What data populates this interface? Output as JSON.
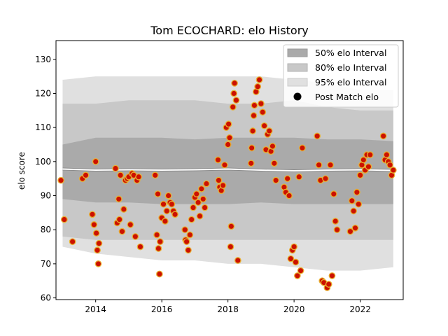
{
  "chart_data": {
    "type": "scatter",
    "title": "Tom ECOCHARD: elo History",
    "xlabel": "",
    "ylabel": "elo score",
    "xlim": [
      2012.8,
      2023.3
    ],
    "ylim": [
      59.5,
      135.5
    ],
    "x_ticks": [
      2014,
      2016,
      2018,
      2020,
      2022
    ],
    "y_ticks": [
      60,
      70,
      80,
      90,
      100,
      110,
      120,
      130
    ],
    "grid": false,
    "legend_position": "top-right",
    "colors": {
      "band_50": "#aaaaaa",
      "band_80": "#c8c8c8",
      "band_95": "#e0e0e0",
      "median_line": "#ffffff",
      "marker_face": "#cc1100",
      "marker_edge": "#e8b030"
    },
    "legend": [
      {
        "label": "50% elo Interval",
        "kind": "band50"
      },
      {
        "label": "80% elo Interval",
        "kind": "band80"
      },
      {
        "label": "95% elo Interval",
        "kind": "band95"
      },
      {
        "label": "Post Match elo",
        "kind": "marker"
      }
    ],
    "intervals": {
      "x": [
        2013.0,
        2014.0,
        2015.0,
        2016.0,
        2017.0,
        2018.0,
        2019.0,
        2020.0,
        2021.0,
        2022.0,
        2023.0
      ],
      "median": [
        97.8,
        97.5,
        97.6,
        97.5,
        97.6,
        97.8,
        97.5,
        97.3,
        97.5,
        97.6,
        97.4
      ],
      "p50_low": [
        89,
        88,
        88,
        87.5,
        87.5,
        87.5,
        88,
        87.5,
        87.5,
        87.5,
        87.5
      ],
      "p50_high": [
        105,
        107,
        107,
        107,
        106.5,
        107,
        107,
        107,
        106.5,
        106.5,
        106
      ],
      "p80_low": [
        78,
        77,
        77,
        77,
        77,
        77,
        77,
        77,
        77,
        77,
        77
      ],
      "p80_high": [
        117,
        117,
        118,
        118,
        118,
        117,
        117,
        118,
        116,
        115,
        115
      ],
      "p95_low": [
        75,
        73,
        72,
        71,
        71,
        70,
        70,
        69,
        68,
        68,
        69
      ],
      "p95_high": [
        124,
        125,
        125,
        125,
        125,
        125,
        125,
        124,
        123,
        121,
        121
      ]
    },
    "series": [
      {
        "name": "Post Match elo",
        "x": [
          2012.95,
          2013.05,
          2013.3,
          2013.6,
          2013.7,
          2013.9,
          2013.95,
          2014.0,
          2014.02,
          2014.05,
          2014.08,
          2014.1,
          2014.6,
          2014.65,
          2014.7,
          2014.72,
          2014.75,
          2014.8,
          2014.85,
          2014.9,
          2014.95,
          2015.0,
          2015.05,
          2015.1,
          2015.15,
          2015.2,
          2015.25,
          2015.3,
          2015.35,
          2015.8,
          2015.85,
          2015.88,
          2015.9,
          2015.93,
          2015.95,
          2016.0,
          2016.05,
          2016.1,
          2016.15,
          2016.2,
          2016.25,
          2016.3,
          2016.35,
          2016.4,
          2016.7,
          2016.72,
          2016.75,
          2016.8,
          2016.85,
          2016.9,
          2016.95,
          2017.0,
          2017.05,
          2017.1,
          2017.15,
          2017.2,
          2017.25,
          2017.3,
          2017.35,
          2017.7,
          2017.72,
          2017.75,
          2017.8,
          2017.85,
          2017.9,
          2017.95,
          2018.0,
          2018.02,
          2018.05,
          2018.08,
          2018.1,
          2018.15,
          2018.18,
          2018.2,
          2018.25,
          2018.3,
          2018.7,
          2018.72,
          2018.75,
          2018.78,
          2018.8,
          2018.85,
          2018.9,
          2018.95,
          2019.0,
          2019.05,
          2019.1,
          2019.15,
          2019.2,
          2019.25,
          2019.3,
          2019.35,
          2019.4,
          2019.45,
          2019.7,
          2019.75,
          2019.8,
          2019.85,
          2019.9,
          2019.95,
          2020.0,
          2020.05,
          2020.1,
          2020.15,
          2020.2,
          2020.25,
          2020.7,
          2020.75,
          2020.8,
          2020.85,
          2020.9,
          2020.95,
          2021.0,
          2021.05,
          2021.1,
          2021.15,
          2021.2,
          2021.25,
          2021.3,
          2021.7,
          2021.75,
          2021.8,
          2021.85,
          2021.9,
          2021.95,
          2022.0,
          2022.05,
          2022.1,
          2022.15,
          2022.2,
          2022.25,
          2022.3,
          2022.7,
          2022.75,
          2022.8,
          2022.85,
          2022.9,
          2022.95,
          2023.0
        ],
        "y": [
          94.5,
          83,
          76.5,
          95,
          96,
          84.5,
          81.5,
          100,
          79,
          74,
          70,
          76,
          98,
          82,
          89,
          83,
          96,
          79.5,
          86,
          94.5,
          95,
          95.5,
          81.5,
          96.5,
          96,
          78,
          94.5,
          95.5,
          75,
          96,
          78.5,
          90.5,
          74.5,
          67,
          76.5,
          83.5,
          87.5,
          82.5,
          85.5,
          90,
          88,
          87.5,
          85.5,
          84.5,
          80,
          77,
          76.5,
          74,
          78.5,
          83,
          86.5,
          89.5,
          90.5,
          88,
          84,
          92,
          89,
          86.5,
          93.5,
          100.5,
          94.5,
          92.5,
          91.5,
          93,
          99,
          110,
          105,
          111,
          107,
          75,
          81,
          116,
          120,
          123,
          118,
          71,
          99.5,
          104,
          109,
          113.5,
          116.5,
          120.5,
          122,
          124,
          117,
          114.5,
          110.5,
          103.5,
          108,
          109,
          103,
          104.5,
          99.5,
          94.5,
          92.5,
          91,
          95,
          90,
          71.5,
          74,
          75,
          70.5,
          66.5,
          95.5,
          68,
          104,
          107.5,
          99,
          94.5,
          65,
          64.5,
          95,
          63,
          64,
          99,
          66.5,
          90.5,
          82.5,
          80,
          79.5,
          88.5,
          85.5,
          80.5,
          91,
          87.5,
          96,
          99,
          100.5,
          97.5,
          102,
          98.5,
          102,
          107.5,
          100.5,
          102,
          100,
          99,
          96,
          97.5
        ]
      }
    ]
  }
}
